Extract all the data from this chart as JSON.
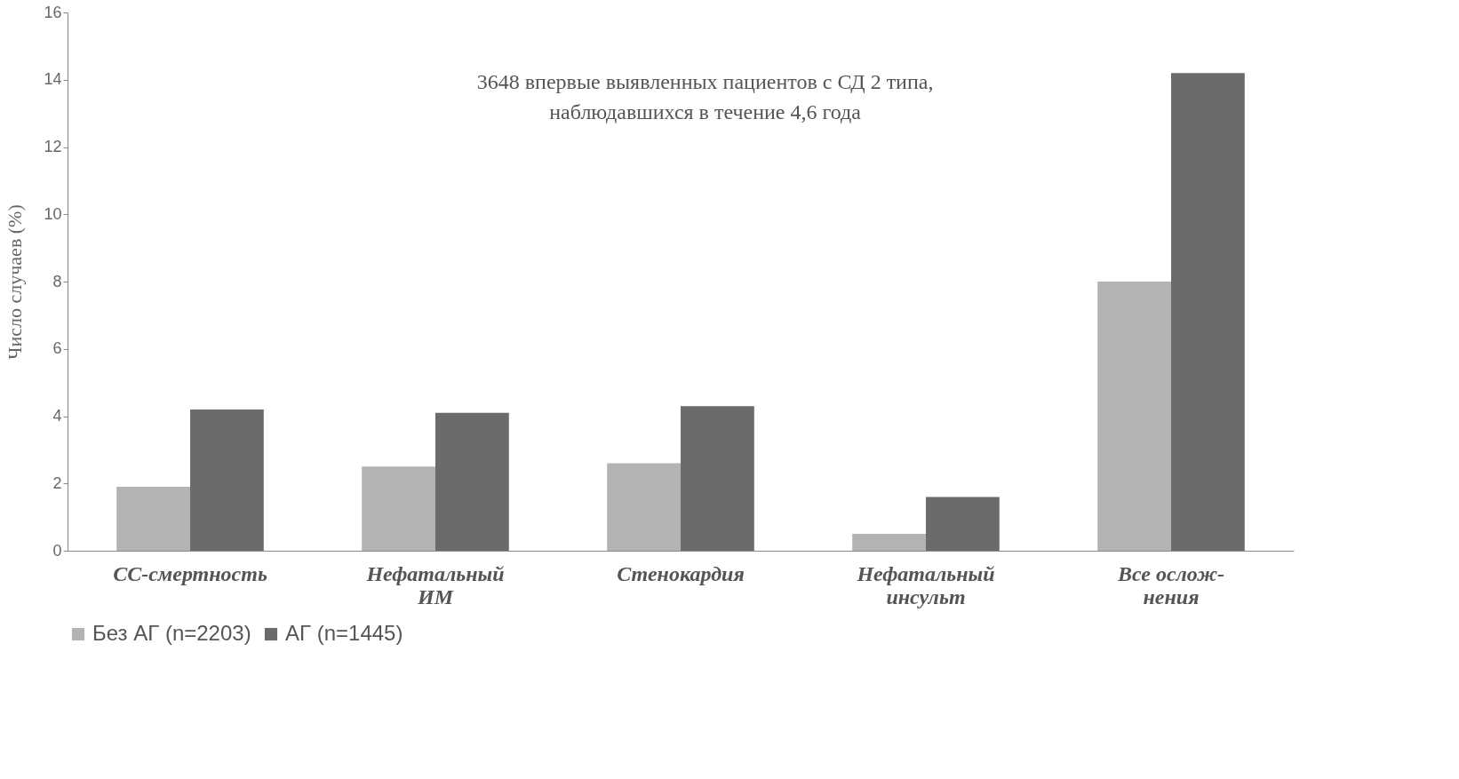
{
  "chart_data": {
    "type": "bar",
    "categories": [
      "СС-смертность",
      "Нефатальный\nИМ",
      "Стенокардия",
      "Нефатальный\nинсульт",
      "Все ослож-\nнения"
    ],
    "series": [
      {
        "name": "Без АГ (n=2203)",
        "color": "#b3b3b3",
        "values": [
          1.9,
          2.5,
          2.6,
          0.5,
          8.0
        ]
      },
      {
        "name": "АГ (n=1445)",
        "color": "#6b6b6b",
        "values": [
          4.2,
          4.1,
          4.3,
          1.6,
          14.2
        ]
      }
    ],
    "ylabel": "Число случаев (%)",
    "ylim": [
      0,
      16
    ],
    "yticks": [
      0,
      2,
      4,
      6,
      8,
      10,
      12,
      14,
      16
    ],
    "annotations": [
      "3648 впервые выявленных пациентов с СД 2 типа,\nнаблюдавшихся в течение 4,6 года"
    ],
    "grid": false,
    "legend": "bottom"
  }
}
